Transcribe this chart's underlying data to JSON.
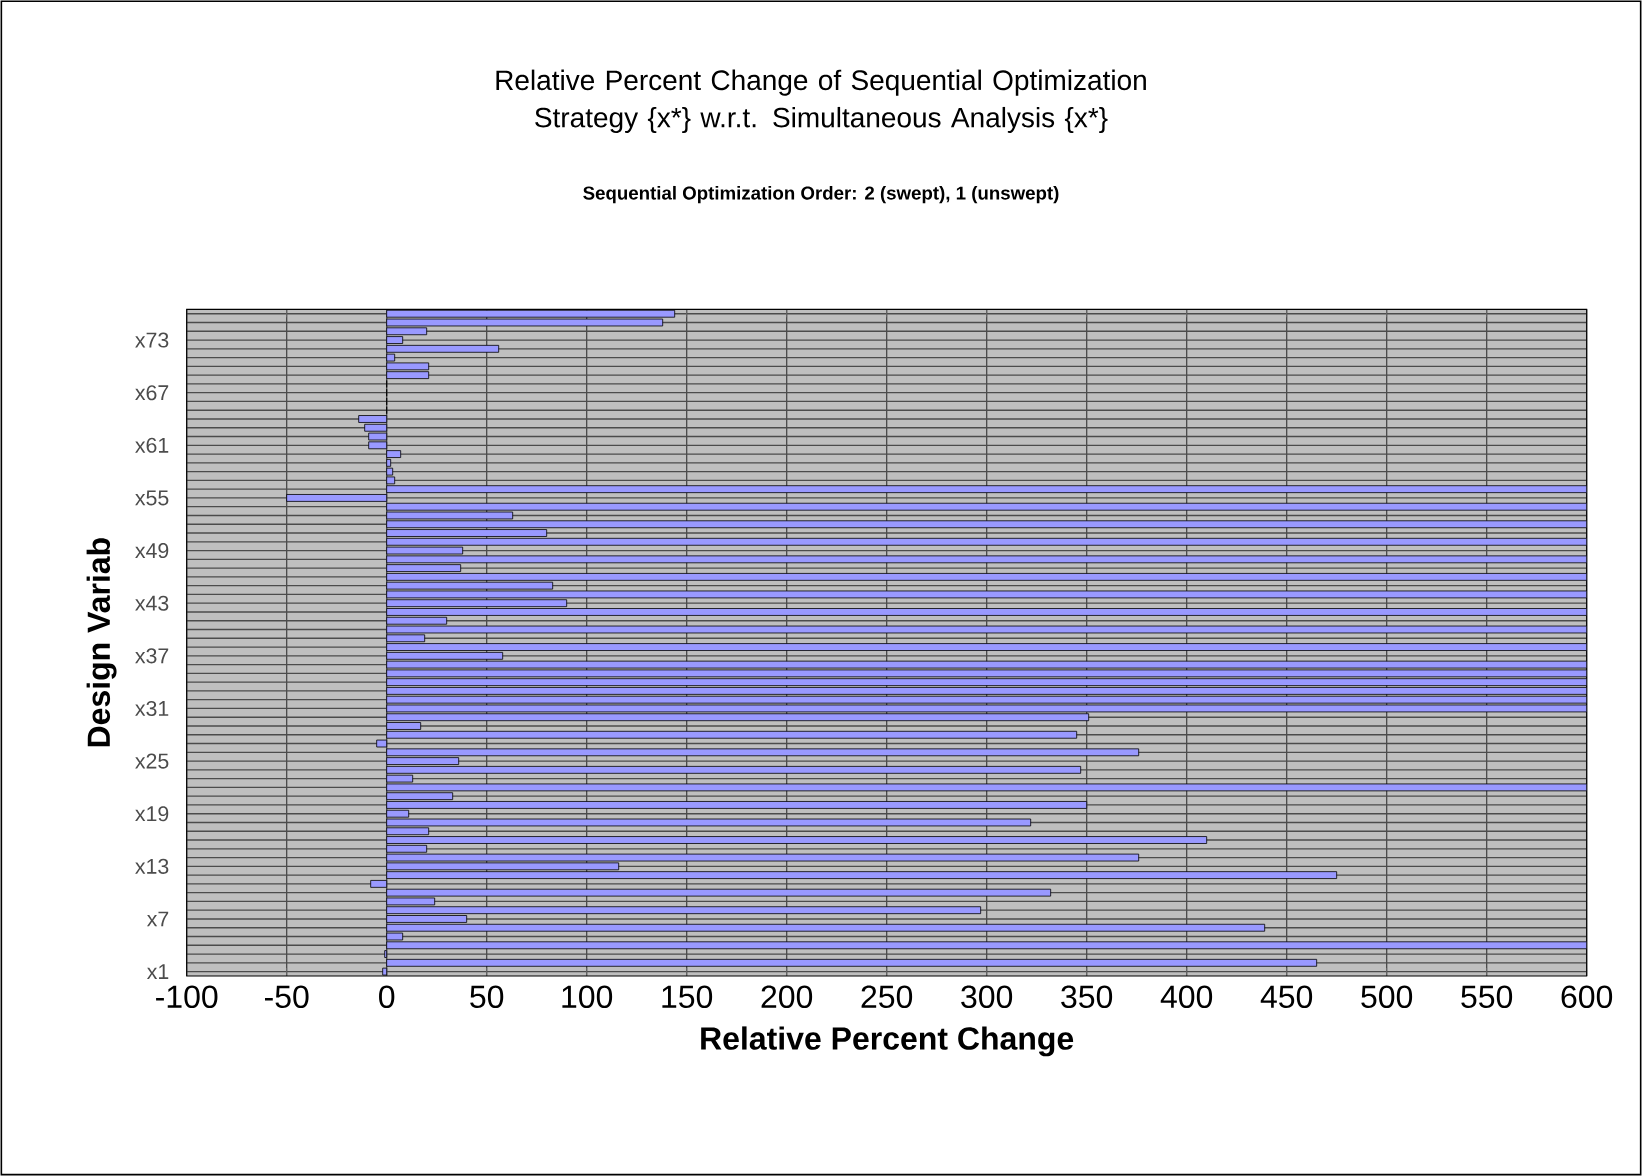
{
  "chart_data": {
    "type": "bar",
    "orientation": "horizontal",
    "title": "Relative Percent Change of Sequential Optimization Strategy {x*} w.r.t. Simultaneous Analysis {x*}",
    "subtitle": "Sequential Optimization Order:  2 (swept), 1 (unswept)",
    "xlabel": "Relative Percent Change",
    "ylabel": "Design Variab",
    "categories": [
      null,
      null,
      null,
      "x73",
      null,
      null,
      null,
      null,
      null,
      "x67",
      null,
      null,
      null,
      null,
      null,
      "x61",
      null,
      null,
      null,
      null,
      null,
      "x55",
      null,
      null,
      null,
      null,
      null,
      "x49",
      null,
      null,
      null,
      null,
      null,
      "x43",
      null,
      null,
      null,
      null,
      null,
      "x37",
      null,
      null,
      null,
      null,
      null,
      "x31",
      null,
      null,
      null,
      null,
      null,
      "x25",
      null,
      null,
      null,
      null,
      null,
      "x19",
      null,
      null,
      null,
      null,
      null,
      "x13",
      null,
      null,
      null,
      null,
      null,
      "x7",
      null,
      null,
      null,
      null,
      null,
      "x1"
    ],
    "values": [
      144,
      138,
      20,
      8,
      56,
      4,
      21,
      21,
      0,
      0,
      0,
      0,
      -14,
      -11,
      -9,
      -9,
      7,
      2,
      3,
      4,
      600,
      -50,
      600,
      63,
      600,
      80,
      600,
      38,
      600,
      37,
      600,
      83,
      600,
      90,
      600,
      30,
      600,
      19,
      600,
      58,
      600,
      600,
      600,
      600,
      600,
      600,
      351,
      17,
      345,
      -5,
      376,
      36,
      347,
      13,
      600,
      33,
      350,
      11,
      322,
      21,
      410,
      20,
      376,
      116,
      475,
      -8,
      332,
      24,
      297,
      40,
      439,
      8,
      600,
      -1,
      465,
      -2
    ],
    "color": "#9999ff",
    "xlim": [
      -100,
      600
    ],
    "xticks": [
      -100,
      -50,
      0,
      50,
      100,
      150,
      200,
      250,
      300,
      350,
      400,
      450,
      500,
      550,
      600
    ],
    "grid": true
  }
}
